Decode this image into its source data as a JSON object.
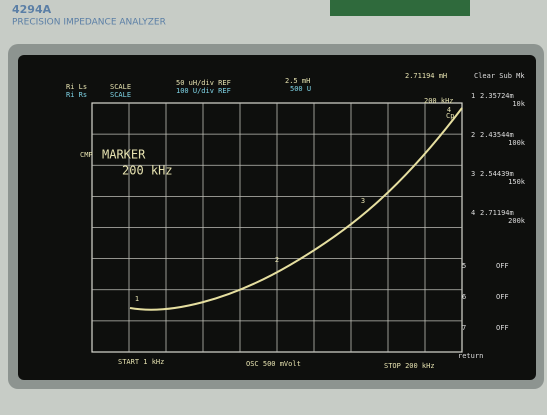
{
  "header": {
    "model": "4294A",
    "title": "PRECISION IMPEDANCE ANALYZER"
  },
  "status": {
    "trace_a": "Ri Ls",
    "trace_b": "Ri Rs",
    "scale_a": "SCALE",
    "scale_b": "SCALE",
    "div_a": "50 uH/div REF",
    "div_b": "100 U/div REF",
    "ref_a": "2.5 mH",
    "ref_b": "500 U",
    "readout": "2.71194 mH",
    "menu_title": "Clear Sub Mk"
  },
  "plot": {
    "marker_freq": "200 kHz",
    "cp": "Cp",
    "cmp": "CMP",
    "marker_label": "MARKER",
    "marker_value": "200 kHz"
  },
  "markers": [
    {
      "id": "1",
      "value": "2.35724m",
      "freq": "10k"
    },
    {
      "id": "2",
      "value": "2.43544m",
      "freq": "100k"
    },
    {
      "id": "3",
      "value": "2.54439m",
      "freq": "150k"
    },
    {
      "id": "4",
      "value": "2.71194m",
      "freq": "200k"
    }
  ],
  "menu": [
    {
      "id": "5",
      "state": "OFF"
    },
    {
      "id": "6",
      "state": "OFF"
    },
    {
      "id": "7",
      "state": "OFF"
    }
  ],
  "menu_return": "return",
  "footer": {
    "start": "START 1 kHz",
    "osc": "OSC 500 mVolt",
    "stop": "STOP 200 kHz"
  }
}
